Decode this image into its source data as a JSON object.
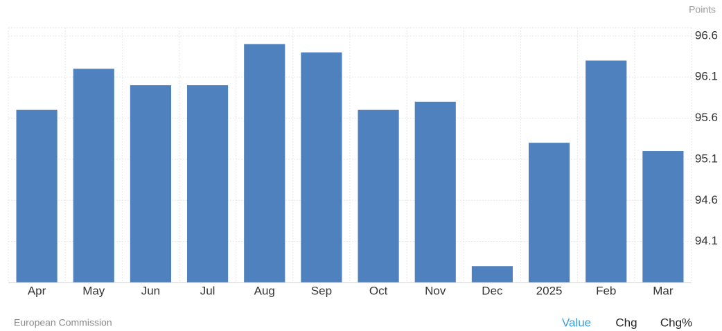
{
  "chart_data": {
    "type": "bar",
    "y_label": "Points",
    "categories": [
      "Apr",
      "May",
      "Jun",
      "Jul",
      "Aug",
      "Sep",
      "Oct",
      "Nov",
      "Dec",
      "2025",
      "Feb",
      "Mar"
    ],
    "values": [
      95.7,
      96.2,
      96.0,
      96.0,
      96.5,
      96.4,
      95.7,
      95.8,
      93.8,
      95.3,
      96.3,
      95.2
    ],
    "color": "#4e81bd",
    "ylim": [
      93.6,
      96.7
    ],
    "yticks": [
      94.1,
      94.6,
      95.1,
      95.6,
      96.1,
      96.6
    ],
    "grid": true
  },
  "source": "European Commission",
  "tabs": [
    "Value",
    "Chg",
    "Chg%"
  ]
}
